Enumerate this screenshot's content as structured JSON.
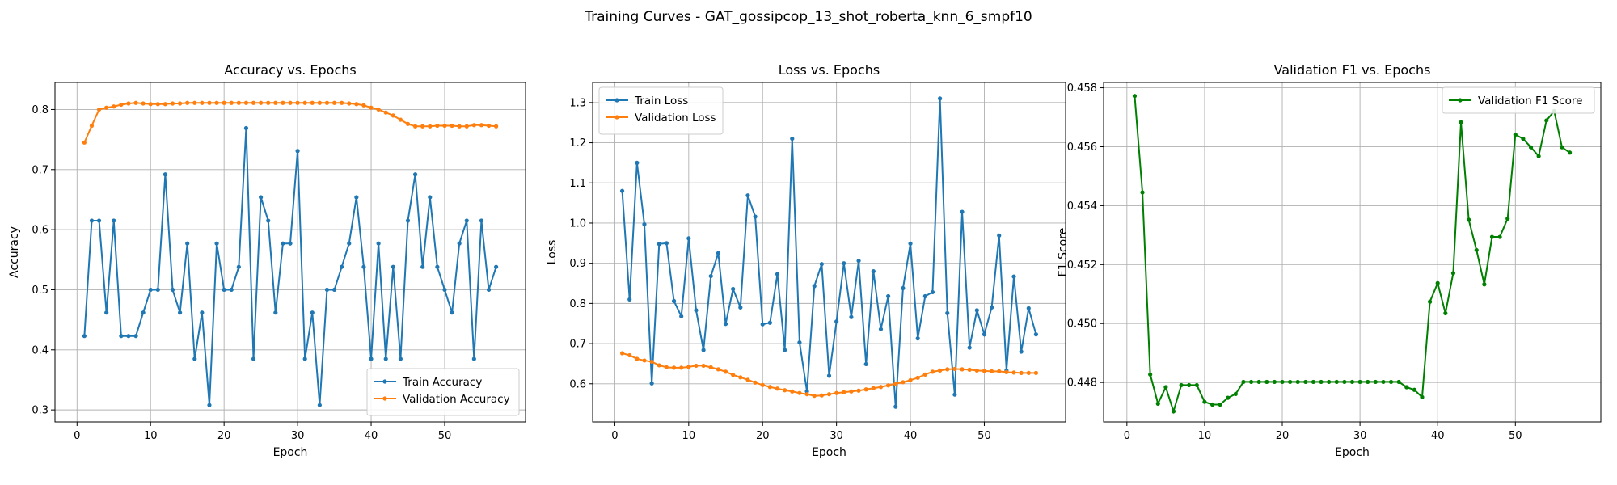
{
  "figure": {
    "suptitle": "Training Curves - GAT_gossipcop_13_shot_roberta_knn_6_smpf10"
  },
  "colors": {
    "train": "#1f77b4",
    "validation": "#ff7f0e",
    "f1": "#008000",
    "grid": "#b0b0b0",
    "axes": "#000000"
  },
  "chart_data": [
    {
      "type": "line",
      "title": "Accuracy vs. Epochs",
      "xlabel": "Epoch",
      "ylabel": "Accuracy",
      "xlim": [
        -3,
        61
      ],
      "ylim": [
        0.28,
        0.845
      ],
      "xticks": [
        0,
        10,
        20,
        30,
        40,
        50
      ],
      "yticks": [
        0.3,
        0.4,
        0.5,
        0.6,
        0.7,
        0.8
      ],
      "ytick_decimals": 1,
      "grid": true,
      "legend_position": "lower-right",
      "x_start": 1,
      "series": [
        {
          "name": "Train Accuracy",
          "color": "#1f77b4",
          "values": [
            0.423,
            0.615,
            0.615,
            0.462,
            0.615,
            0.423,
            0.423,
            0.423,
            0.462,
            0.5,
            0.5,
            0.692,
            0.5,
            0.462,
            0.577,
            0.385,
            0.462,
            0.308,
            0.577,
            0.5,
            0.5,
            0.538,
            0.769,
            0.385,
            0.654,
            0.615,
            0.462,
            0.577,
            0.577,
            0.731,
            0.385,
            0.462,
            0.308,
            0.5,
            0.5,
            0.538,
            0.577,
            0.654,
            0.538,
            0.385,
            0.577,
            0.385,
            0.538,
            0.385,
            0.615,
            0.692,
            0.538,
            0.654,
            0.538,
            0.5,
            0.462,
            0.577,
            0.615,
            0.385,
            0.615,
            0.5,
            0.538
          ]
        },
        {
          "name": "Validation Accuracy",
          "color": "#ff7f0e",
          "values": [
            0.745,
            0.773,
            0.8,
            0.803,
            0.805,
            0.808,
            0.81,
            0.811,
            0.81,
            0.809,
            0.809,
            0.809,
            0.81,
            0.81,
            0.811,
            0.811,
            0.811,
            0.811,
            0.811,
            0.811,
            0.811,
            0.811,
            0.811,
            0.811,
            0.811,
            0.811,
            0.811,
            0.811,
            0.811,
            0.811,
            0.811,
            0.811,
            0.811,
            0.811,
            0.811,
            0.811,
            0.81,
            0.809,
            0.807,
            0.803,
            0.8,
            0.795,
            0.79,
            0.783,
            0.776,
            0.772,
            0.772,
            0.772,
            0.773,
            0.773,
            0.773,
            0.772,
            0.772,
            0.774,
            0.774,
            0.773,
            0.772
          ]
        }
      ]
    },
    {
      "type": "line",
      "title": "Loss vs. Epochs",
      "xlabel": "Epoch",
      "ylabel": "Loss",
      "xlim": [
        -3,
        61
      ],
      "ylim": [
        0.505,
        1.35
      ],
      "xticks": [
        0,
        10,
        20,
        30,
        40,
        50
      ],
      "yticks": [
        0.6,
        0.7,
        0.8,
        0.9,
        1.0,
        1.1,
        1.2,
        1.3
      ],
      "ytick_decimals": 1,
      "grid": true,
      "legend_position": "upper-left",
      "x_start": 1,
      "series": [
        {
          "name": "Train Loss",
          "color": "#1f77b4",
          "values": [
            1.08,
            0.81,
            1.15,
            0.997,
            0.601,
            0.948,
            0.95,
            0.806,
            0.768,
            0.962,
            0.783,
            0.684,
            0.868,
            0.925,
            0.749,
            0.836,
            0.79,
            1.069,
            1.016,
            0.748,
            0.752,
            0.873,
            0.684,
            1.21,
            0.703,
            0.581,
            0.843,
            0.898,
            0.62,
            0.755,
            0.9,
            0.766,
            0.906,
            0.649,
            0.88,
            0.736,
            0.818,
            0.543,
            0.838,
            0.949,
            0.713,
            0.818,
            0.828,
            1.31,
            0.776,
            0.573,
            1.028,
            0.69,
            0.783,
            0.723,
            0.79,
            0.969,
            0.633,
            0.867,
            0.68,
            0.788,
            0.723
          ]
        },
        {
          "name": "Validation Loss",
          "color": "#ff7f0e",
          "values": [
            0.676,
            0.671,
            0.662,
            0.658,
            0.655,
            0.646,
            0.641,
            0.64,
            0.64,
            0.642,
            0.645,
            0.645,
            0.641,
            0.636,
            0.63,
            0.622,
            0.616,
            0.61,
            0.603,
            0.597,
            0.592,
            0.588,
            0.584,
            0.581,
            0.577,
            0.574,
            0.57,
            0.571,
            0.574,
            0.577,
            0.579,
            0.581,
            0.583,
            0.586,
            0.589,
            0.592,
            0.596,
            0.6,
            0.604,
            0.609,
            0.615,
            0.623,
            0.63,
            0.633,
            0.636,
            0.637,
            0.636,
            0.635,
            0.633,
            0.632,
            0.631,
            0.631,
            0.629,
            0.628,
            0.627,
            0.627,
            0.627
          ]
        }
      ]
    },
    {
      "type": "line",
      "title": "Validation F1 vs. Epochs",
      "xlabel": "Epoch",
      "ylabel": "F1 Score",
      "xlim": [
        -3,
        61
      ],
      "ylim": [
        0.44666,
        0.45818
      ],
      "xticks": [
        0,
        10,
        20,
        30,
        40,
        50
      ],
      "yticks": [
        0.448,
        0.45,
        0.452,
        0.454,
        0.456,
        0.458
      ],
      "ytick_decimals": 3,
      "grid": true,
      "legend_position": "upper-right",
      "x_start": 1,
      "series": [
        {
          "name": "Validation F1 Score",
          "color": "#008000",
          "values": [
            0.45772,
            0.45445,
            0.44827,
            0.44728,
            0.44784,
            0.44702,
            0.44791,
            0.44791,
            0.44791,
            0.44734,
            0.44725,
            0.44725,
            0.44748,
            0.44761,
            0.44802,
            0.44802,
            0.44802,
            0.44802,
            0.44802,
            0.44802,
            0.44802,
            0.44802,
            0.44802,
            0.44802,
            0.44802,
            0.44802,
            0.44802,
            0.44802,
            0.44802,
            0.44802,
            0.44802,
            0.44802,
            0.44802,
            0.44802,
            0.44802,
            0.44784,
            0.44775,
            0.4475,
            0.45074,
            0.45137,
            0.45035,
            0.45171,
            0.45683,
            0.45352,
            0.45249,
            0.45133,
            0.45294,
            0.45294,
            0.45356,
            0.45641,
            0.45627,
            0.45598,
            0.45568,
            0.45689,
            0.45721,
            0.45598,
            0.4558
          ]
        }
      ]
    }
  ]
}
